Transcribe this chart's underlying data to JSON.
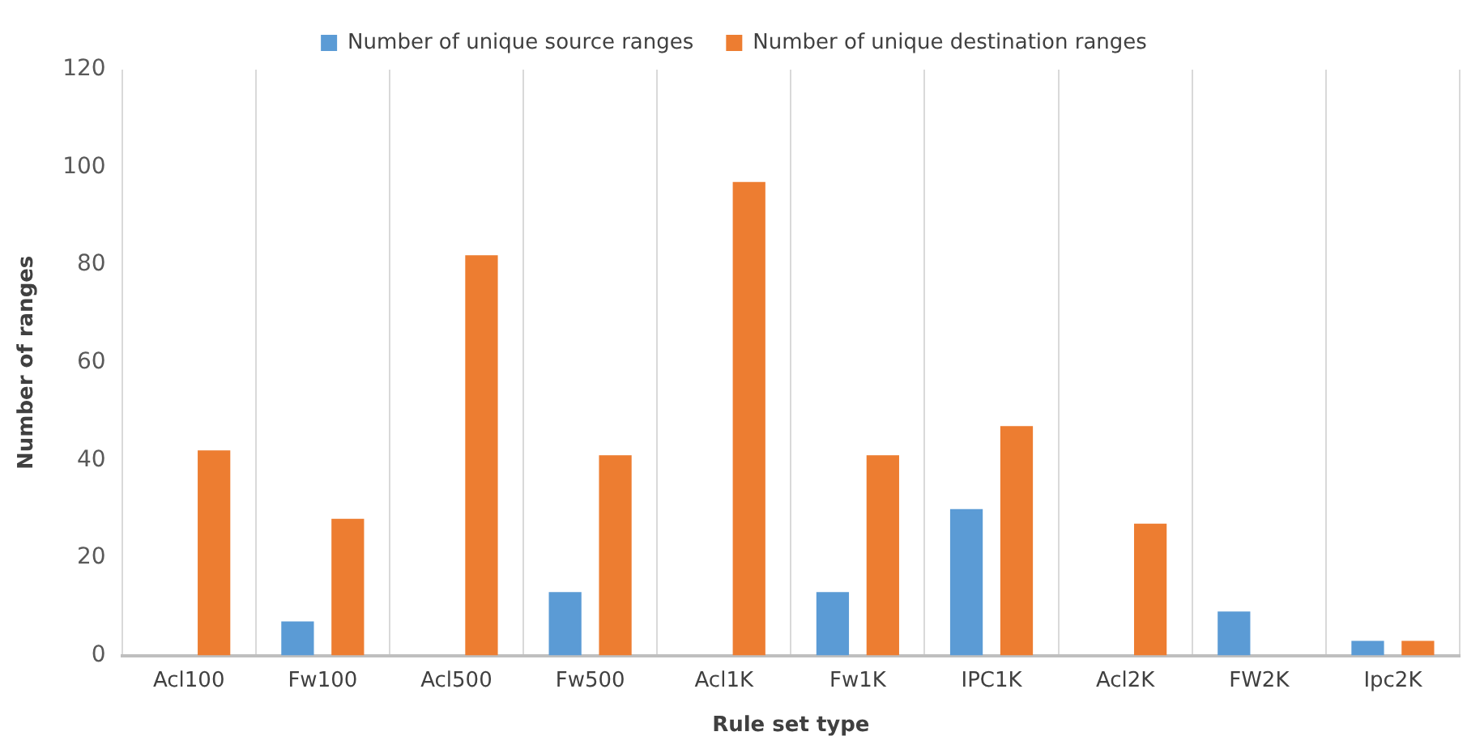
{
  "chart_data": {
    "type": "bar",
    "xlabel": "Rule set type",
    "ylabel": "Number of ranges",
    "categories": [
      "Acl100",
      "Fw100",
      "Acl500",
      "Fw500",
      "Acl1K",
      "Fw1K",
      "IPC1K",
      "Acl2K",
      "FW2K",
      "Ipc2K"
    ],
    "series": [
      {
        "name": "Number of unique source ranges",
        "color": "#5b9bd5",
        "values": [
          0,
          7,
          0,
          13,
          0,
          13,
          30,
          0,
          9,
          3
        ]
      },
      {
        "name": "Number of unique destination ranges",
        "color": "#ed7d31",
        "values": [
          42,
          28,
          82,
          41,
          97,
          41,
          47,
          27,
          0,
          3
        ]
      }
    ],
    "ylim": [
      0,
      120
    ],
    "yticks": [
      0,
      20,
      40,
      60,
      80,
      100,
      120
    ],
    "grid": "x",
    "legend": "top"
  }
}
